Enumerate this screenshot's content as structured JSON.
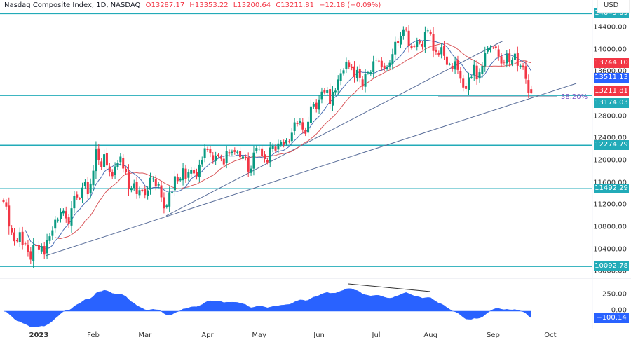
{
  "header": {
    "symbol": "Nasdaq Composite Index, 1D, NASDAQ",
    "open": "O13287.17",
    "high": "H13353.22",
    "low": "L13200.64",
    "close": "C13211.81",
    "change": "−12.18 (−0.09%)"
  },
  "currency": "USD",
  "colors": {
    "up": "#089981",
    "down": "#f23645",
    "level": "#22abb8",
    "ma_fast": "#4a6fb5",
    "ma_slow": "#d9575b",
    "trendline": "#5a6e9a",
    "oscillator": "#2962ff"
  },
  "chart_data": {
    "type": "candlestick",
    "ylim": [
      9904,
      14893
    ],
    "y_ticks": [
      "14400.00",
      "14000.00",
      "13600.00",
      "12800.00",
      "12400.00",
      "12000.00",
      "11600.00",
      "11200.00",
      "10800.00",
      "10400.00",
      "10000.00"
    ],
    "x_ticks": [
      "2023",
      "Feb",
      "Mar",
      "Apr",
      "May",
      "Jun",
      "Jul",
      "Aug",
      "Sep",
      "Oct"
    ],
    "months": [
      {
        "month": "2022-12",
        "days": [
          13,
          14,
          15,
          16,
          19,
          20,
          21,
          22,
          23,
          27,
          28,
          29,
          30
        ],
        "close": [
          11256,
          11170,
          10811,
          10705,
          10546,
          10547,
          10709,
          10477,
          10498,
          10354,
          10214,
          10479,
          10466
        ]
      },
      {
        "month": "2023-01",
        "days": [
          3,
          4,
          5,
          6,
          9,
          10,
          11,
          12,
          13,
          17,
          18,
          19,
          20,
          23,
          24,
          25,
          26,
          27,
          30,
          31
        ],
        "close": [
          10386,
          10459,
          10305,
          10569,
          10635,
          10743,
          10932,
          10931,
          11079,
          11095,
          10958,
          10852,
          11140,
          11365,
          11334,
          11313,
          11512,
          11621,
          11394,
          11585
        ]
      },
      {
        "month": "2023-02",
        "days": [
          1,
          2,
          3,
          6,
          7,
          8,
          9,
          10,
          13,
          14,
          15,
          16,
          17,
          21,
          22,
          23,
          24,
          27,
          28
        ],
        "close": [
          11816,
          12201,
          12007,
          11887,
          12113,
          11910,
          11789,
          11718,
          11892,
          11960,
          12070,
          11855,
          11787,
          11492,
          11507,
          11590,
          11395,
          11467,
          11456
        ]
      },
      {
        "month": "2023-03",
        "days": [
          1,
          2,
          3,
          6,
          7,
          8,
          9,
          10,
          13,
          14,
          15,
          16,
          17,
          20,
          21,
          22,
          23,
          24,
          27,
          28,
          29,
          30,
          31
        ],
        "close": [
          11379,
          11462,
          11689,
          11675,
          11531,
          11576,
          11338,
          11138,
          11188,
          11428,
          11434,
          11717,
          11630,
          11675,
          11860,
          11670,
          11787,
          11824,
          11768,
          11716,
          11926,
          12013,
          12222
        ]
      },
      {
        "month": "2023-04",
        "days": [
          3,
          4,
          5,
          6,
          10,
          11,
          12,
          13,
          14,
          17,
          18,
          19,
          20,
          21,
          24,
          25,
          26,
          27,
          28
        ],
        "close": [
          12190,
          12126,
          11997,
          12088,
          12085,
          12031,
          11929,
          12167,
          12124,
          12158,
          12154,
          12157,
          12060,
          12072,
          12038,
          11800,
          11854,
          12143,
          12227
        ]
      },
      {
        "month": "2023-05",
        "days": [
          1,
          2,
          3,
          4,
          5,
          8,
          9,
          10,
          11,
          12,
          15,
          16,
          17,
          18,
          19,
          22,
          23,
          24,
          25,
          26,
          30,
          31
        ],
        "close": [
          12212,
          12081,
          12025,
          11967,
          12235,
          12256,
          12180,
          12306,
          12329,
          12285,
          12366,
          12344,
          12501,
          12688,
          12658,
          12721,
          12560,
          12484,
          12698,
          12976,
          13017,
          12935
        ]
      },
      {
        "month": "2023-06",
        "days": [
          1,
          2,
          5,
          6,
          7,
          8,
          9,
          12,
          13,
          14,
          15,
          16,
          20,
          21,
          22,
          23,
          26,
          27,
          28,
          29,
          30
        ],
        "close": [
          13101,
          13241,
          13230,
          13276,
          13020,
          13239,
          13259,
          13461,
          13573,
          13626,
          13782,
          13689,
          13667,
          13502,
          13631,
          13492,
          13336,
          13556,
          13592,
          13591,
          13788
        ]
      },
      {
        "month": "2023-07",
        "days": [
          3,
          5,
          6,
          7,
          10,
          11,
          12,
          13,
          14,
          17,
          18,
          19,
          20,
          21,
          24,
          25,
          26,
          27,
          28,
          31
        ],
        "close": [
          13817,
          13792,
          13679,
          13661,
          13685,
          13761,
          13918,
          14138,
          14114,
          14244,
          14353,
          14358,
          14063,
          14032,
          14059,
          14145,
          14127,
          14051,
          14317,
          14346
        ]
      },
      {
        "month": "2023-08",
        "days": [
          1,
          2,
          3,
          4,
          7,
          8,
          9,
          10,
          11,
          14,
          15,
          16,
          17,
          18,
          21,
          22,
          23,
          24,
          25,
          28,
          29,
          30,
          31
        ],
        "close": [
          14284,
          13974,
          13960,
          13909,
          14044,
          13885,
          13723,
          13737,
          13645,
          13789,
          13632,
          13474,
          13317,
          13291,
          13498,
          13506,
          13722,
          13464,
          13591,
          13705,
          13944,
          14020,
          14035
        ]
      },
      {
        "month": "2023-09",
        "days": [
          1,
          5,
          6,
          7,
          8,
          11,
          12,
          13,
          14,
          15,
          18,
          19,
          20,
          21,
          22
        ],
        "close": [
          14031,
          14021,
          13873,
          13749,
          13762,
          13918,
          13774,
          13814,
          13926,
          13708,
          13711,
          13679,
          13470,
          13223.99,
          13211.81
        ]
      }
    ],
    "last_bar": {
      "open": 13287.17,
      "high": 13353.22,
      "low": 13200.64,
      "close": 13211.81
    },
    "levels": [
      {
        "value": 14649.09,
        "label": "14649.09"
      },
      {
        "value": 13174.03,
        "label": "13174.03"
      },
      {
        "value": 12274.79,
        "label": "12274.79"
      },
      {
        "value": 11492.29,
        "label": "11492.29"
      },
      {
        "value": 10092.78,
        "label": "10092.78"
      }
    ],
    "price_tags": [
      {
        "label": "13744.10",
        "color": "#f23645",
        "value": 13744.1
      },
      {
        "label": "13511.13",
        "color": "#2962ff",
        "value": 13511.13
      },
      {
        "label": "13211.81",
        "color": "#f23645",
        "value": 13211.81
      },
      {
        "label": "13174.03",
        "color": "#22abb8",
        "value": 13174.03
      }
    ],
    "fib_label": "38.20%",
    "oscillator": {
      "ticks": [
        "250.00",
        "0.00"
      ],
      "last": "−100.14"
    }
  }
}
